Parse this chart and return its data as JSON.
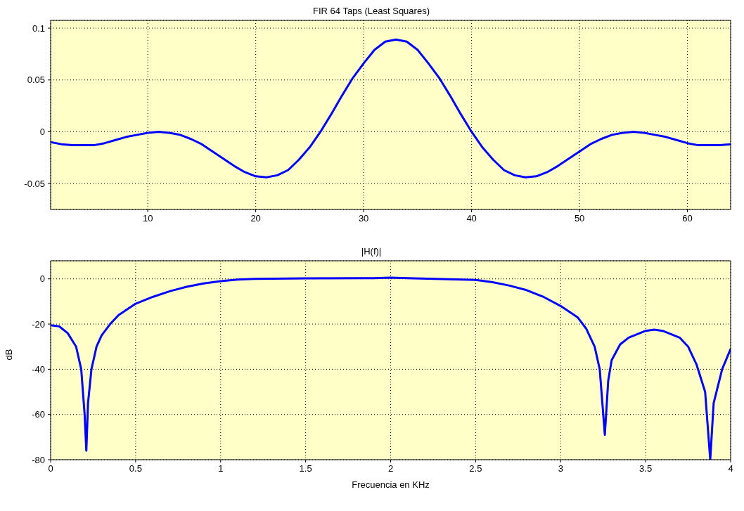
{
  "chart_data": [
    {
      "type": "line",
      "title": "FIR 64 Taps (Least Squares)",
      "x": [
        1,
        2,
        3,
        4,
        5,
        6,
        7,
        8,
        9,
        10,
        11,
        12,
        13,
        14,
        15,
        16,
        17,
        18,
        19,
        20,
        21,
        22,
        23,
        24,
        25,
        26,
        27,
        28,
        29,
        30,
        31,
        32,
        33,
        34,
        35,
        36,
        37,
        38,
        39,
        40,
        41,
        42,
        43,
        44,
        45,
        46,
        47,
        48,
        49,
        50,
        51,
        52,
        53,
        54,
        55,
        56,
        57,
        58,
        59,
        60,
        61,
        62,
        63,
        64
      ],
      "series": [
        {
          "color": "#0000ff",
          "values": [
            -0.01,
            -0.012,
            -0.013,
            -0.013,
            -0.013,
            -0.011,
            -0.008,
            -0.005,
            -0.003,
            -0.001,
            0,
            -0.001,
            -0.003,
            -0.007,
            -0.012,
            -0.019,
            -0.026,
            -0.033,
            -0.039,
            -0.043,
            -0.044,
            -0.042,
            -0.037,
            -0.027,
            -0.015,
            0,
            0.017,
            0.035,
            0.052,
            0.066,
            0.079,
            0.087,
            0.089,
            0.087,
            0.079,
            0.066,
            0.052,
            0.035,
            0.017,
            0,
            -0.015,
            -0.027,
            -0.037,
            -0.042,
            -0.044,
            -0.043,
            -0.039,
            -0.033,
            -0.026,
            -0.019,
            -0.012,
            -0.007,
            -0.003,
            -0.001,
            0,
            -0.001,
            -0.003,
            -0.005,
            -0.008,
            -0.011,
            -0.013,
            -0.013,
            -0.013,
            -0.012
          ]
        }
      ],
      "xlim": [
        1,
        64
      ],
      "xticks": [
        10,
        20,
        30,
        40,
        50,
        60
      ],
      "ylim": [
        -0.075,
        0.1075
      ],
      "yticks": [
        -0.05,
        0,
        0.05,
        0.1
      ],
      "grid": true,
      "legend": false
    },
    {
      "type": "line",
      "title": "|H(f)|",
      "xlabel": "Frecuencia en KHz",
      "ylabel": "dB",
      "x": [
        0,
        0.05,
        0.1,
        0.15,
        0.18,
        0.2,
        0.21,
        0.22,
        0.24,
        0.27,
        0.3,
        0.35,
        0.4,
        0.5,
        0.6,
        0.7,
        0.8,
        0.9,
        1.0,
        1.1,
        1.2,
        1.5,
        1.9,
        2.0,
        2.1,
        2.5,
        2.6,
        2.7,
        2.8,
        2.9,
        3.0,
        3.1,
        3.15,
        3.2,
        3.23,
        3.26,
        3.28,
        3.3,
        3.35,
        3.4,
        3.5,
        3.55,
        3.6,
        3.7,
        3.75,
        3.8,
        3.85,
        3.88,
        3.9,
        3.95,
        4.0
      ],
      "series": [
        {
          "color": "#0000ff",
          "values": [
            -20.5,
            -21,
            -24,
            -30,
            -40,
            -60,
            -76,
            -55,
            -40,
            -30,
            -25,
            -20,
            -16,
            -11,
            -8,
            -5.5,
            -3.5,
            -2,
            -1,
            -0.3,
            0,
            0.2,
            0.3,
            0.5,
            0.3,
            -0.5,
            -1.5,
            -3,
            -5,
            -8,
            -12,
            -17,
            -22,
            -30,
            -40,
            -69,
            -45,
            -36,
            -29,
            -26,
            -23,
            -22.5,
            -23,
            -26,
            -30,
            -38,
            -50,
            -80,
            -55,
            -40,
            -31
          ]
        }
      ],
      "xlim": [
        0,
        4
      ],
      "xticks": [
        0,
        0.5,
        1,
        1.5,
        2,
        2.5,
        3,
        3.5,
        4
      ],
      "ylim": [
        -80,
        8
      ],
      "yticks": [
        -80,
        -60,
        -40,
        -20,
        0
      ],
      "grid": true,
      "legend": false
    }
  ]
}
